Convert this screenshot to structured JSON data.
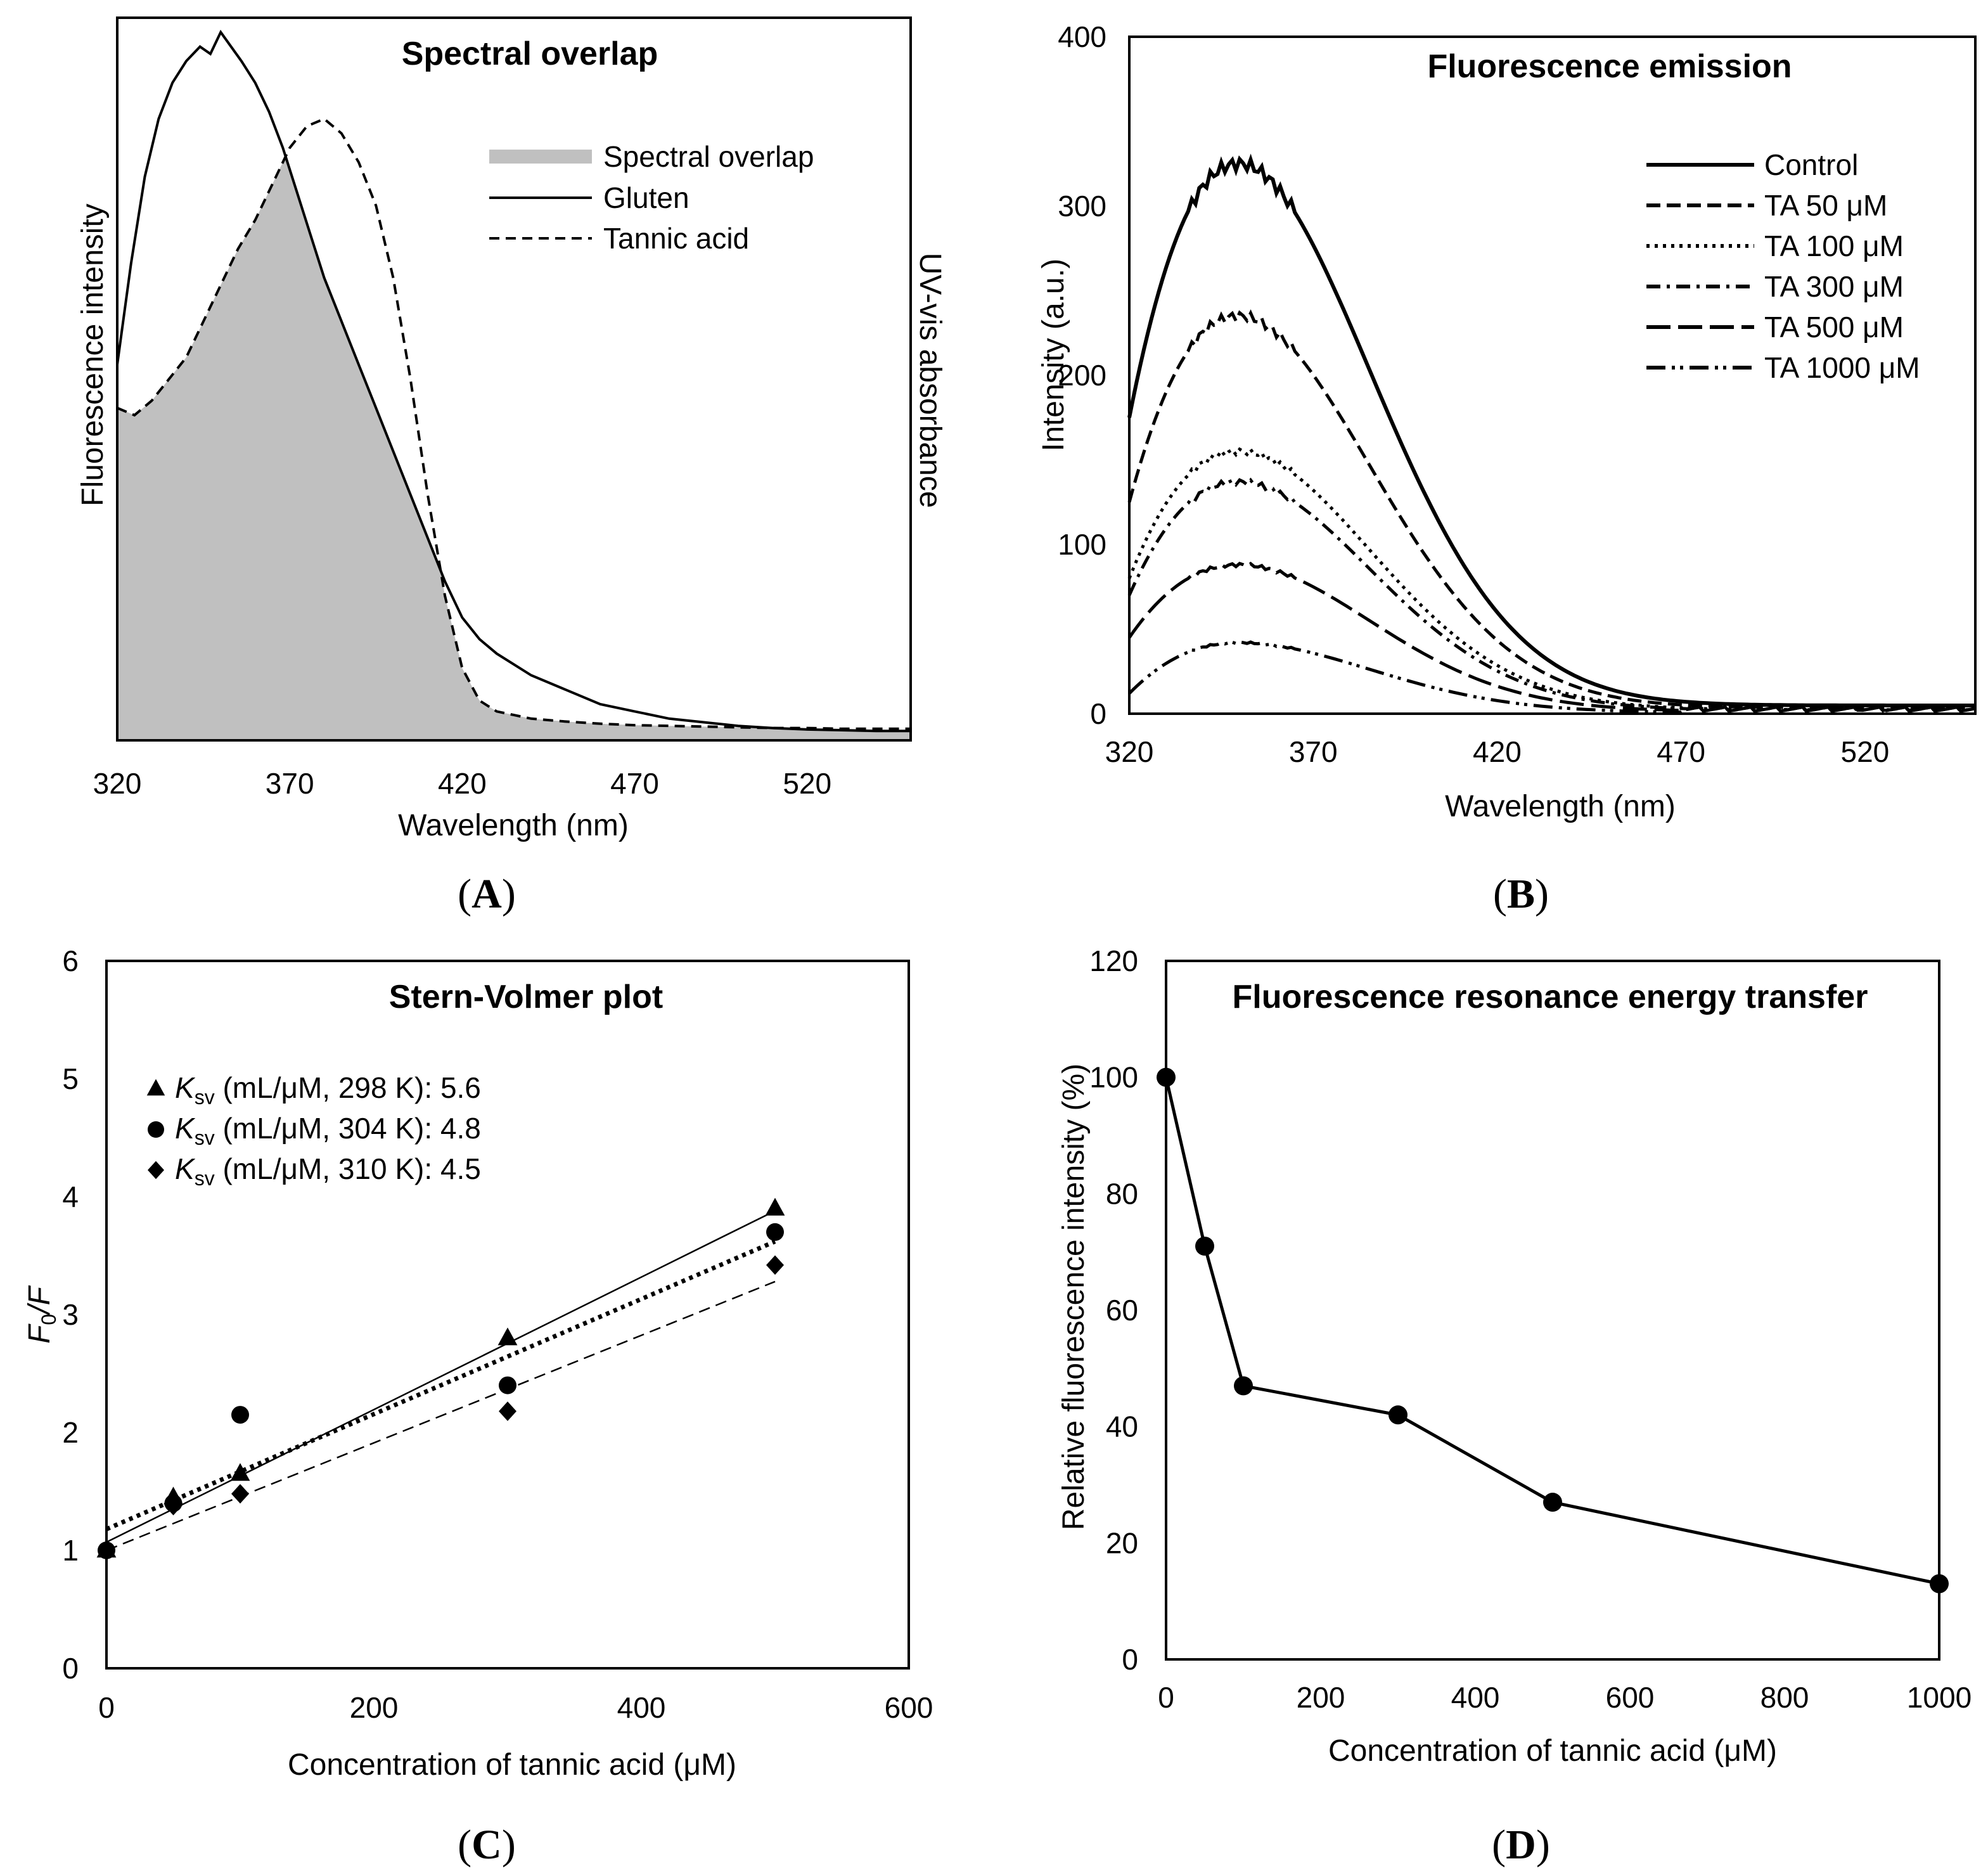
{
  "chart_data": [
    {
      "id": "A",
      "panel_label": "A",
      "type": "line",
      "title": "Spectral overlap",
      "xlabel": "Wavelength  (nm)",
      "ylabel": "Fluorescence intensity",
      "ylabel_right": "UV-vis  absorbance",
      "xlim": [
        320,
        550
      ],
      "ylim": [
        0,
        100
      ],
      "xticks": [
        320,
        370,
        420,
        470,
        520
      ],
      "x_tick_labels": [
        "320",
        "370",
        "420",
        "470",
        "520"
      ],
      "legend_position": "top-right",
      "legend": [
        "Spectral overlap",
        "Gluten",
        "Tannic acid"
      ],
      "series": [
        {
          "name": "Gluten",
          "style": "solid",
          "x": [
            320,
            324,
            328,
            332,
            336,
            340,
            344,
            347,
            350,
            353,
            356,
            360,
            364,
            368,
            372,
            376,
            380,
            385,
            390,
            395,
            400,
            405,
            410,
            415,
            420,
            425,
            430,
            440,
            450,
            460,
            470,
            480,
            490,
            500,
            510,
            520,
            530,
            540,
            550
          ],
          "y": [
            52,
            66,
            78,
            86,
            91,
            94,
            96,
            95,
            98,
            96,
            94,
            91,
            87,
            82,
            76,
            70,
            64,
            58,
            52,
            46,
            40,
            34,
            28,
            22,
            17,
            14,
            12,
            9,
            7,
            5,
            4,
            3,
            2.5,
            2,
            1.7,
            1.5,
            1.4,
            1.3,
            1.3
          ]
        },
        {
          "name": "Tannic acid",
          "style": "dashed",
          "x": [
            320,
            325,
            330,
            335,
            340,
            345,
            350,
            355,
            360,
            365,
            370,
            375,
            380,
            385,
            390,
            395,
            400,
            405,
            410,
            415,
            420,
            425,
            430,
            435,
            440,
            450,
            460,
            470,
            480,
            490,
            500,
            510,
            520,
            530,
            540,
            550
          ],
          "y": [
            46,
            45,
            47,
            50,
            53,
            58,
            63,
            68,
            72,
            77,
            82,
            85,
            86,
            84,
            80,
            74,
            64,
            50,
            34,
            20,
            10,
            5.5,
            4,
            3.5,
            3,
            2.6,
            2.3,
            2.1,
            2,
            1.9,
            1.8,
            1.7,
            1.7,
            1.6,
            1.6,
            1.6
          ]
        }
      ]
    },
    {
      "id": "B",
      "panel_label": "B",
      "type": "line",
      "title": "Fluorescence emission",
      "xlabel": "Wavelength  (nm)",
      "ylabel": "Intensity  (a.u.)",
      "xlim": [
        320,
        550
      ],
      "ylim": [
        0,
        400
      ],
      "xticks": [
        320,
        370,
        420,
        470,
        520
      ],
      "x_tick_labels": [
        "320",
        "370",
        "420",
        "470",
        "520"
      ],
      "yticks": [
        0,
        100,
        200,
        300,
        400
      ],
      "y_tick_labels": [
        "0",
        "100",
        "200",
        "300",
        "400"
      ],
      "legend_position": "top-right",
      "legend": [
        "Control",
        "TA 50 μM",
        "TA 100 μM",
        "TA 300 μM",
        "TA 500 μM",
        "TA 1000 μM"
      ],
      "peak_wavelength": 350,
      "series": [
        {
          "name": "Control",
          "style": "solid",
          "peak": 325,
          "start": 175
        },
        {
          "name": "TA 50 μM",
          "style": "dash",
          "peak": 235,
          "start": 125
        },
        {
          "name": "TA 100 μM",
          "style": "dot",
          "peak": 155,
          "start": 80
        },
        {
          "name": "TA 300 μM",
          "style": "dashdot",
          "peak": 137,
          "start": 70
        },
        {
          "name": "TA 500 μM",
          "style": "longdash",
          "peak": 88,
          "start": 45
        },
        {
          "name": "TA 1000 μM",
          "style": "dashdotdot",
          "peak": 42,
          "start": 12
        }
      ]
    },
    {
      "id": "C",
      "panel_label": "C",
      "type": "scatter",
      "title": "Stern-Volmer plot",
      "xlabel": "Concentration of tannic acid (μM)",
      "ylabel_main": "F",
      "ylabel_sub": "0",
      "ylabel_tail": "/F",
      "xlim": [
        0,
        600
      ],
      "ylim": [
        0,
        6
      ],
      "xticks": [
        0,
        200,
        400,
        600
      ],
      "x_tick_labels": [
        "0",
        "200",
        "400",
        "600"
      ],
      "yticks": [
        0,
        1,
        2,
        3,
        4,
        5,
        6
      ],
      "y_tick_labels": [
        "0",
        "1",
        "2",
        "3",
        "4",
        "5",
        "6"
      ],
      "legend_position": "top-left",
      "series": [
        {
          "name_k": "K",
          "name_sub": "sv",
          "name_rest": " (mL/μM, 298 K): 5.6",
          "marker": "triangle",
          "trend": "solid",
          "x": [
            0,
            50,
            100,
            300,
            500
          ],
          "y": [
            1.0,
            1.45,
            1.65,
            2.8,
            3.9
          ],
          "fit": [
            1.07,
            3.88
          ]
        },
        {
          "name_k": "K",
          "name_sub": "sv",
          "name_rest": " (mL/μM, 304 K): 4.8",
          "marker": "circle",
          "trend": "dotted",
          "x": [
            0,
            50,
            100,
            300,
            500
          ],
          "y": [
            1.0,
            1.4,
            2.15,
            2.4,
            3.7
          ],
          "fit": [
            1.18,
            3.62
          ]
        },
        {
          "name_k": "K",
          "name_sub": "sv",
          "name_rest": " (mL/μM, 310 K): 4.5",
          "marker": "diamond",
          "trend": "dashed",
          "x": [
            0,
            50,
            100,
            300,
            500
          ],
          "y": [
            1.0,
            1.38,
            1.48,
            2.18,
            3.42
          ],
          "fit": [
            1.0,
            3.28
          ]
        }
      ]
    },
    {
      "id": "D",
      "panel_label": "D",
      "type": "line",
      "title": "Fluorescence resonance energy transfer",
      "xlabel": "Concentration of tannic acid (μM)",
      "ylabel": "Relative  fluorescence intensity  (%)",
      "xlim": [
        0,
        1000
      ],
      "ylim": [
        0,
        120
      ],
      "xticks": [
        0,
        200,
        400,
        600,
        800,
        1000
      ],
      "x_tick_labels": [
        "0",
        "200",
        "400",
        "600",
        "800",
        "1000"
      ],
      "yticks": [
        0,
        20,
        40,
        60,
        80,
        100,
        120
      ],
      "y_tick_labels": [
        "0",
        "20",
        "40",
        "60",
        "80",
        "100",
        "120"
      ],
      "series": [
        {
          "x": [
            0,
            50,
            100,
            300,
            500,
            1000
          ],
          "y": [
            100,
            71,
            47,
            42,
            27,
            13
          ]
        }
      ]
    }
  ]
}
